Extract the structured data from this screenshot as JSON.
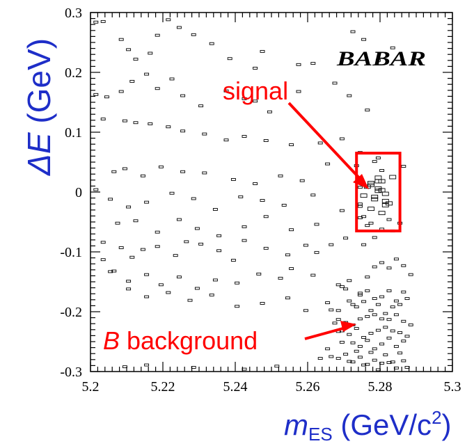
{
  "chart_data": {
    "type": "scatter",
    "title": "",
    "xlabel": "m",
    "xlabel_sub": "ES",
    "xlabel_unit": " (GeV/c",
    "xlabel_sup": "2",
    "xlabel_close": ")",
    "ylabel_italic": "ΔE",
    "ylabel_unit": " (GeV)",
    "xlim": [
      5.2,
      5.3
    ],
    "ylim": [
      -0.3,
      0.3
    ],
    "xticks": [
      "5.2",
      "5.22",
      "5.24",
      "5.26",
      "5.28",
      "5.3"
    ],
    "xtick_values": [
      5.2,
      5.22,
      5.24,
      5.26,
      5.28,
      5.3
    ],
    "yticks": [
      "0.3",
      "0.2",
      "0.1",
      "0",
      "-0.1",
      "-0.2",
      "-0.3"
    ],
    "ytick_values": [
      0.3,
      0.2,
      0.1,
      0.0,
      -0.1,
      -0.2,
      -0.3
    ],
    "logo": "BABAR",
    "colors": {
      "annotation": "#ff0000",
      "axis_title": "#1e2ec8",
      "marker": "#000000"
    },
    "annotations": [
      {
        "text_italic": "",
        "text": "signal",
        "color": "#ff0000"
      },
      {
        "text_italic": "B",
        "text": " background",
        "color": "#ff0000"
      }
    ],
    "signal_box": {
      "x_range": [
        5.2735,
        5.2855
      ],
      "y_range": [
        -0.065,
        0.065
      ]
    },
    "points_x": [
      5.2015,
      5.2035,
      5.2085,
      5.2105,
      5.2125,
      5.2165,
      5.2185,
      5.2215,
      5.2245,
      5.2285,
      5.2335,
      5.2385,
      5.2455,
      5.2475,
      5.2575,
      5.2615,
      5.2725,
      5.2755,
      5.2835,
      5.2795,
      5.2015,
      5.2045,
      5.2085,
      5.2115,
      5.2155,
      5.2185,
      5.2225,
      5.2255,
      5.2305,
      5.2375,
      5.2425,
      5.2455,
      5.2495,
      5.2575,
      5.2675,
      5.2715,
      5.2765,
      5.2035,
      5.2095,
      5.2125,
      5.2165,
      5.2215,
      5.2255,
      5.2315,
      5.2375,
      5.2425,
      5.2485,
      5.2555,
      5.2635,
      5.2695,
      5.2745,
      5.2795,
      5.2065,
      5.2095,
      5.2145,
      5.2195,
      5.2255,
      5.2315,
      5.2395,
      5.2455,
      5.2525,
      5.2585,
      5.2655,
      5.2735,
      5.2785,
      5.2795,
      5.2015,
      5.2055,
      5.2105,
      5.2155,
      5.2225,
      5.2285,
      5.2345,
      5.2415,
      5.2475,
      5.2535,
      5.2615,
      5.2695,
      5.2745,
      5.2805,
      5.2835,
      5.2865,
      5.2075,
      5.2125,
      5.2185,
      5.2245,
      5.2295,
      5.2355,
      5.2425,
      5.2485,
      5.2555,
      5.2625,
      5.2705,
      5.2755,
      5.2785,
      5.2835,
      5.2855,
      5.2795,
      5.2815,
      5.2775,
      5.2805,
      5.2785,
      5.2815,
      5.2795,
      5.2775,
      5.2805,
      5.2815,
      5.2765,
      5.2795,
      5.2785,
      5.2825,
      5.2805,
      5.2775,
      5.2755,
      5.2745,
      5.2745,
      5.2755,
      5.2775,
      5.2745,
      5.2765,
      5.2805,
      5.2825,
      5.2035,
      5.2085,
      5.2115,
      5.2145,
      5.2185,
      5.2235,
      5.2265,
      5.2305,
      5.2355,
      5.2395,
      5.2425,
      5.2485,
      5.2545,
      5.2595,
      5.2625,
      5.2665,
      5.2035,
      5.2065,
      5.2105,
      5.2155,
      5.2195,
      5.2245,
      5.2295,
      5.2345,
      5.2405,
      5.2465,
      5.2525,
      5.2555,
      5.2615,
      5.2055,
      5.2105,
      5.2155,
      5.2215,
      5.2275,
      5.2335,
      5.2405,
      5.2475,
      5.2545,
      5.2595,
      5.2655,
      5.2685,
      5.2715,
      5.2745,
      5.2765,
      5.2785,
      5.2805,
      5.2825,
      5.2845,
      5.2865,
      5.2885,
      5.2685,
      5.2705,
      5.2725,
      5.2745,
      5.2765,
      5.2785,
      5.2805,
      5.2825,
      5.2845,
      5.2865,
      5.2695,
      5.2715,
      5.2735,
      5.2755,
      5.2775,
      5.2795,
      5.2815,
      5.2835,
      5.2855,
      5.2875,
      5.2665,
      5.2685,
      5.2705,
      5.2725,
      5.2745,
      5.2765,
      5.2785,
      5.2805,
      5.2825,
      5.2845,
      5.2865,
      5.2885,
      5.2675,
      5.2695,
      5.2715,
      5.2735,
      5.2755,
      5.2775,
      5.2795,
      5.2815,
      5.2835,
      5.2855,
      5.2875,
      5.2685,
      5.2705,
      5.2725,
      5.2745,
      5.2765,
      5.2785,
      5.2805,
      5.2825,
      5.2845,
      5.2865,
      5.2655,
      5.2695,
      5.2735,
      5.2775,
      5.2815,
      5.2855,
      5.2665,
      5.2705,
      5.2745,
      5.2785,
      5.2825,
      5.2865,
      5.2685,
      5.2725,
      5.2765,
      5.2805,
      5.2845,
      5.2095,
      5.2155,
      5.2285,
      5.2425,
      5.2515,
      5.2635,
      5.2715,
      5.2755,
      5.2795,
      5.2835,
      5.2875
    ],
    "points_y": [
      0.284,
      0.285,
      0.255,
      0.238,
      0.222,
      0.232,
      0.262,
      0.288,
      0.275,
      0.263,
      0.248,
      0.223,
      0.207,
      0.235,
      0.213,
      0.215,
      0.268,
      0.255,
      0.241,
      0.22,
      0.163,
      0.159,
      0.168,
      0.185,
      0.197,
      0.173,
      0.189,
      0.161,
      0.144,
      0.169,
      0.156,
      0.152,
      0.134,
      0.168,
      0.182,
      0.161,
      0.137,
      0.122,
      0.119,
      0.116,
      0.114,
      0.109,
      0.102,
      0.097,
      0.087,
      0.093,
      0.086,
      0.079,
      0.082,
      0.089,
      0.066,
      0.057,
      0.034,
      0.039,
      0.027,
      0.042,
      0.034,
      0.032,
      0.021,
      0.014,
      0.027,
      0.019,
      0.047,
      0.044,
      0.051,
      0.018,
      0.004,
      -0.012,
      -0.025,
      -0.017,
      -0.002,
      -0.011,
      -0.029,
      -0.008,
      -0.014,
      -0.022,
      -0.005,
      -0.031,
      -0.02,
      0.036,
      0.025,
      0.043,
      -0.052,
      -0.048,
      -0.067,
      -0.046,
      -0.061,
      -0.073,
      -0.058,
      -0.041,
      -0.063,
      -0.054,
      -0.077,
      -0.088,
      -0.076,
      -0.065,
      -0.052,
      0.006,
      -0.003,
      0.012,
      0.018,
      -0.012,
      -0.022,
      0.024,
      -0.028,
      -0.035,
      -0.015,
      0.009,
      0.002,
      -0.008,
      -0.019,
      0.003,
      0.015,
      -0.006,
      0.008,
      -0.024,
      -0.041,
      -0.052,
      -0.043,
      -0.056,
      -0.062,
      -0.046,
      -0.084,
      -0.093,
      -0.109,
      -0.096,
      -0.091,
      -0.106,
      -0.083,
      -0.087,
      -0.098,
      -0.114,
      -0.081,
      -0.094,
      -0.105,
      -0.089,
      -0.101,
      -0.088,
      -0.113,
      -0.132,
      -0.149,
      -0.138,
      -0.155,
      -0.142,
      -0.161,
      -0.147,
      -0.152,
      -0.137,
      -0.144,
      -0.128,
      -0.139,
      -0.133,
      -0.162,
      -0.175,
      -0.168,
      -0.181,
      -0.172,
      -0.191,
      -0.186,
      -0.177,
      -0.198,
      -0.185,
      -0.213,
      -0.182,
      -0.169,
      -0.142,
      -0.125,
      -0.118,
      -0.127,
      -0.112,
      -0.123,
      -0.138,
      -0.155,
      -0.162,
      -0.188,
      -0.172,
      -0.165,
      -0.178,
      -0.175,
      -0.165,
      -0.182,
      -0.167,
      -0.158,
      -0.148,
      -0.192,
      -0.183,
      -0.198,
      -0.188,
      -0.203,
      -0.192,
      -0.188,
      -0.178,
      -0.197,
      -0.198,
      -0.218,
      -0.222,
      -0.212,
      -0.208,
      -0.205,
      -0.212,
      -0.213,
      -0.205,
      -0.216,
      -0.222,
      -0.219,
      -0.232,
      -0.238,
      -0.228,
      -0.243,
      -0.236,
      -0.231,
      -0.226,
      -0.232,
      -0.235,
      -0.241,
      -0.233,
      -0.226,
      -0.252,
      -0.258,
      -0.248,
      -0.262,
      -0.254,
      -0.244,
      -0.258,
      -0.249,
      -0.262,
      -0.251,
      -0.266,
      -0.268,
      -0.272,
      -0.269,
      -0.275,
      -0.271,
      -0.276,
      -0.281,
      -0.285,
      -0.282,
      -0.278,
      -0.284,
      -0.288,
      -0.286,
      -0.294,
      -0.292,
      -0.289,
      -0.293,
      -0.296,
      -0.291,
      -0.278,
      -0.283,
      -0.289,
      -0.297,
      -0.284,
      -0.293,
      -0.287,
      -0.299,
      -0.294,
      -0.289,
      -0.296
    ]
  }
}
